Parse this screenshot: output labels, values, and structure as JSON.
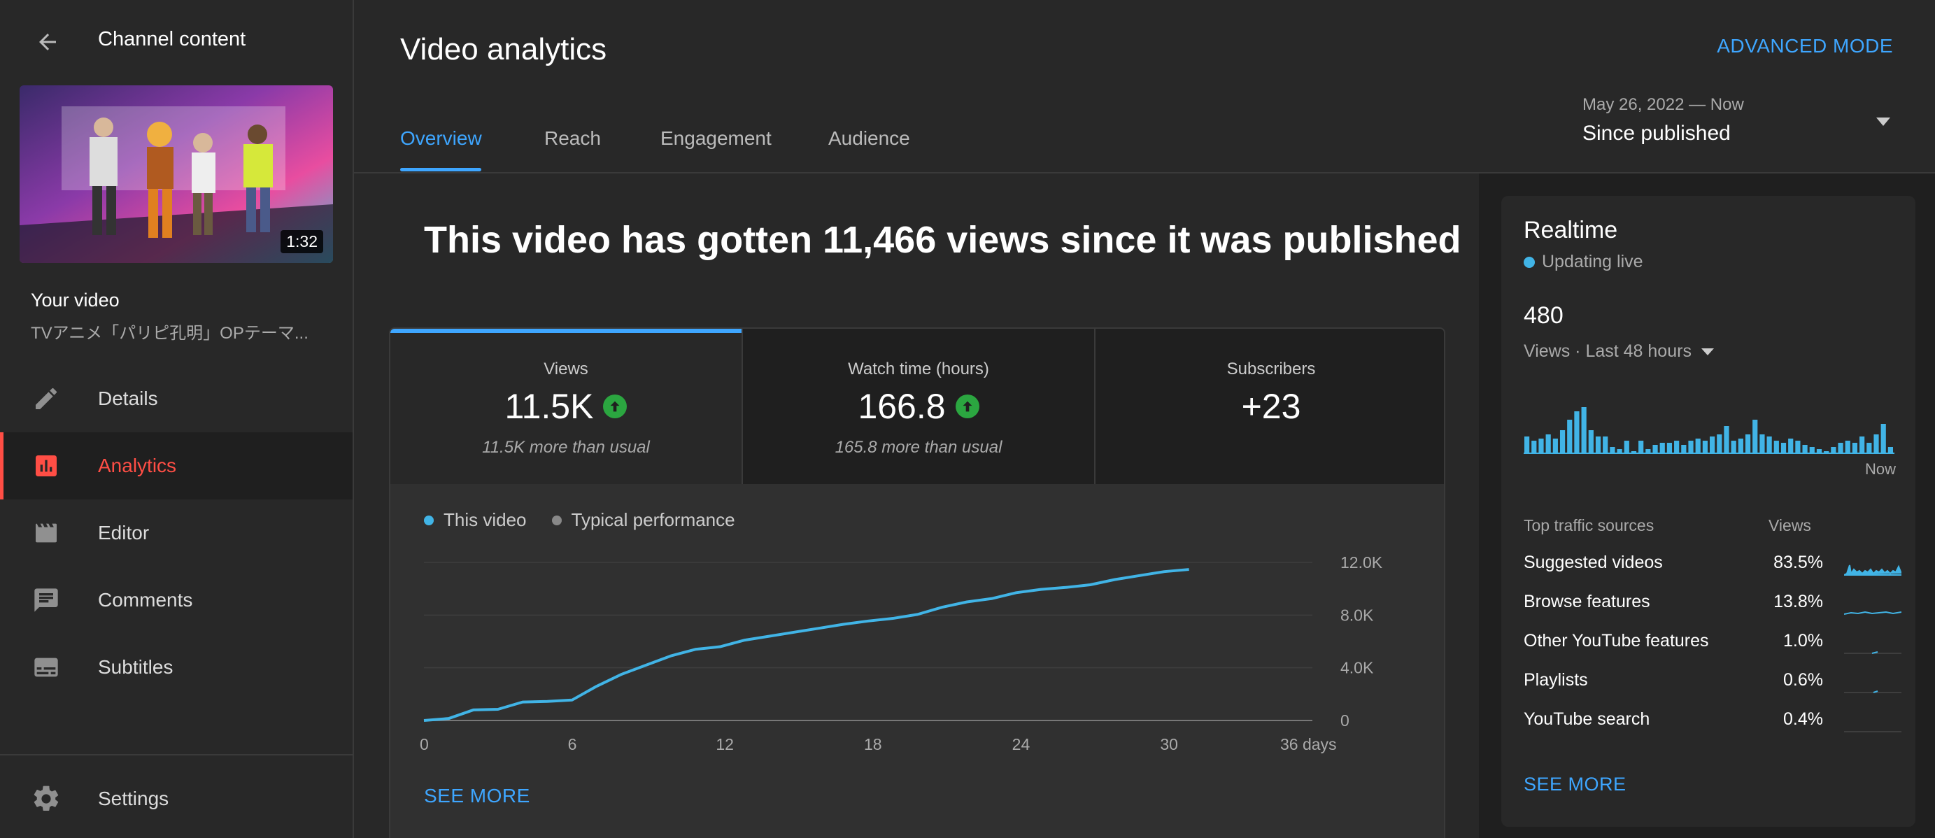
{
  "sidebar": {
    "title": "Channel content",
    "thumbnail_duration": "1:32",
    "your_video_label": "Your video",
    "video_name": "TVアニメ「パリピ孔明」OPテーマ...",
    "items": [
      {
        "label": "Details",
        "icon": "pencil-icon"
      },
      {
        "label": "Analytics",
        "icon": "analytics-icon"
      },
      {
        "label": "Editor",
        "icon": "clapperboard-icon"
      },
      {
        "label": "Comments",
        "icon": "comment-icon"
      },
      {
        "label": "Subtitles",
        "icon": "subtitles-icon"
      }
    ],
    "settings_label": "Settings",
    "active_color": "#ff4e45"
  },
  "header": {
    "title": "Video analytics",
    "advanced_mode": "ADVANCED MODE",
    "tabs": [
      {
        "label": "Overview"
      },
      {
        "label": "Reach"
      },
      {
        "label": "Engagement"
      },
      {
        "label": "Audience"
      }
    ],
    "date_range": "May 26, 2022 — Now",
    "date_label": "Since published"
  },
  "main": {
    "headline": "This video has gotten 11,466 views since it was published",
    "metrics": [
      {
        "label": "Views",
        "value": "11.5K",
        "sub": "11.5K more than usual"
      },
      {
        "label": "Watch time (hours)",
        "value": "166.8",
        "sub": "165.8 more than usual"
      },
      {
        "label": "Subscribers",
        "value": "+23",
        "sub": ""
      }
    ],
    "legend": {
      "this_video": "This video",
      "typical": "Typical performance"
    },
    "see_more": "SEE MORE"
  },
  "chart_data": {
    "type": "line",
    "x": [
      0,
      1,
      2,
      3,
      4,
      5,
      6,
      7,
      8,
      9,
      10,
      11,
      12,
      13,
      14,
      15,
      16,
      17,
      18,
      19,
      20,
      21,
      22,
      23,
      24,
      25,
      26,
      27,
      28,
      29,
      30,
      31
    ],
    "series": [
      {
        "name": "This video",
        "values": [
          0,
          150,
          800,
          850,
          1400,
          1450,
          1550,
          2600,
          3500,
          4200,
          4900,
          5400,
          5600,
          6100,
          6400,
          6700,
          7000,
          7300,
          7550,
          7750,
          8050,
          8600,
          9000,
          9250,
          9700,
          9950,
          10100,
          10300,
          10700,
          11000,
          11300,
          11466
        ]
      }
    ],
    "xticks": [
      "0",
      "6",
      "12",
      "18",
      "24",
      "30",
      "36 days"
    ],
    "yticks": [
      "0",
      "4.0K",
      "8.0K",
      "12.0K"
    ],
    "xlim": [
      0,
      36
    ],
    "ylim": [
      0,
      12000
    ],
    "color": "#41b4e6"
  },
  "realtime": {
    "title": "Realtime",
    "live_label": "Updating live",
    "count": "480",
    "period_label": "Views · Last 48 hours",
    "now_label": "Now",
    "bars": [
      8,
      6,
      7,
      9,
      7,
      11,
      16,
      20,
      22,
      11,
      8,
      8,
      3,
      2,
      6,
      1,
      6,
      2,
      4,
      5,
      5,
      6,
      4,
      6,
      7,
      6,
      8,
      9,
      13,
      6,
      7,
      9,
      16,
      9,
      8,
      6,
      5,
      7,
      6,
      4,
      3,
      2,
      1,
      3,
      5,
      6,
      5,
      8,
      5,
      9,
      14,
      3
    ],
    "traffic_header": {
      "source": "Top traffic sources",
      "views": "Views"
    },
    "sources": [
      {
        "name": "Suggested videos",
        "pct": "83.5%"
      },
      {
        "name": "Browse features",
        "pct": "13.8%"
      },
      {
        "name": "Other YouTube features",
        "pct": "1.0%"
      },
      {
        "name": "Playlists",
        "pct": "0.6%"
      },
      {
        "name": "YouTube search",
        "pct": "0.4%"
      }
    ],
    "see_more": "SEE MORE"
  }
}
